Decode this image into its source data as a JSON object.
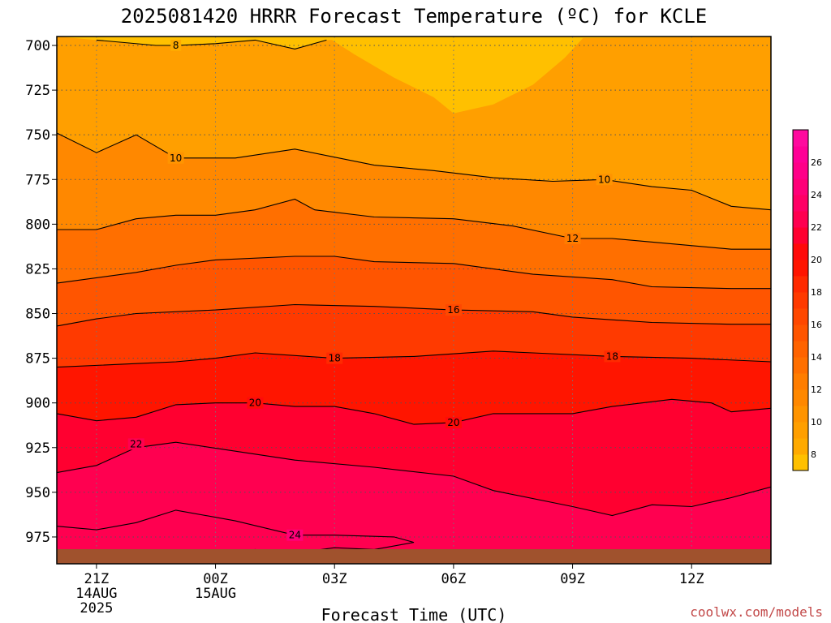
{
  "chart_data": {
    "type": "heatmap",
    "title": "2025081420 HRRR Forecast Temperature (ºC) for KCLE",
    "xlabel": "Forecast Time (UTC)",
    "ylabel": "",
    "credit": "coolwx.com/models",
    "y_axis": {
      "ticks": [
        700,
        725,
        750,
        775,
        800,
        825,
        850,
        875,
        900,
        925,
        950,
        975
      ],
      "range": [
        695,
        990
      ],
      "inverted": true
    },
    "x_axis": {
      "ticks": [
        {
          "hour": 21,
          "label": "21Z",
          "sub1": "14AUG",
          "sub2": "2025"
        },
        {
          "hour": 24,
          "label": "00Z",
          "sub1": "15AUG",
          "sub2": ""
        },
        {
          "hour": 27,
          "label": "03Z",
          "sub1": "",
          "sub2": ""
        },
        {
          "hour": 30,
          "label": "06Z",
          "sub1": "",
          "sub2": ""
        },
        {
          "hour": 33,
          "label": "09Z",
          "sub1": "",
          "sub2": ""
        },
        {
          "hour": 36,
          "label": "12Z",
          "sub1": "",
          "sub2": ""
        }
      ],
      "range": [
        20,
        38
      ]
    },
    "grid": true,
    "colorbar": {
      "placement": "right",
      "levels": [
        7,
        8,
        9,
        10,
        11,
        12,
        13,
        14,
        15,
        16,
        17,
        18,
        19,
        20,
        21,
        22,
        23,
        24,
        25,
        26,
        27,
        28
      ],
      "colors": [
        "#ffc000",
        "#ffaa00",
        "#ff9f00",
        "#ff9400",
        "#ff8800",
        "#ff7d00",
        "#ff6f00",
        "#ff6300",
        "#ff5500",
        "#ff4800",
        "#ff3a00",
        "#ff2a00",
        "#ff1500",
        "#ff0a0a",
        "#ff0030",
        "#ff0050",
        "#ff0065",
        "#ff0078",
        "#ff0088",
        "#ff0096",
        "#ff0a9e"
      ],
      "tick_labels": [
        8,
        10,
        12,
        14,
        16,
        18,
        20,
        22,
        24,
        26
      ]
    },
    "contours": [
      {
        "level": 8,
        "label_positions": [
          [
            23.0,
            700
          ]
        ],
        "points": [
          [
            21.0,
            697.0
          ],
          [
            22.5,
            700.0
          ],
          [
            23.0,
            700.0
          ],
          [
            24.0,
            699.0
          ],
          [
            25.0,
            697.0
          ],
          [
            26.0,
            702.0
          ],
          [
            26.8,
            697.0
          ]
        ]
      },
      {
        "level": 10,
        "label_positions": [
          [
            23.0,
            763
          ],
          [
            33.8,
            775
          ]
        ],
        "points": [
          [
            20.0,
            749.0
          ],
          [
            21.0,
            760.0
          ],
          [
            22.0,
            750.0
          ],
          [
            23.0,
            763.0
          ],
          [
            24.5,
            763.0
          ],
          [
            26.0,
            758.0
          ],
          [
            28.0,
            767.0
          ],
          [
            29.5,
            770.0
          ],
          [
            31.0,
            774.0
          ],
          [
            32.5,
            776.0
          ],
          [
            33.8,
            775.0
          ],
          [
            35.0,
            779.0
          ],
          [
            36.0,
            781.0
          ],
          [
            37.0,
            790.0
          ],
          [
            38.0,
            792.0
          ]
        ]
      },
      {
        "level": 12,
        "label_positions": [
          [
            33.0,
            808
          ]
        ],
        "points": [
          [
            20.0,
            803.0
          ],
          [
            21.0,
            803.0
          ],
          [
            22.0,
            797.0
          ],
          [
            23.0,
            795.0
          ],
          [
            24.0,
            795.0
          ],
          [
            25.0,
            792.0
          ],
          [
            26.0,
            786.0
          ],
          [
            26.5,
            792.0
          ],
          [
            28.0,
            796.0
          ],
          [
            30.0,
            797.0
          ],
          [
            31.5,
            801.0
          ],
          [
            33.0,
            808.0
          ],
          [
            34.0,
            808.0
          ],
          [
            35.5,
            811.0
          ],
          [
            37.0,
            814.0
          ],
          [
            38.0,
            814.0
          ]
        ]
      },
      {
        "level": 14,
        "label_positions": [],
        "points": [
          [
            20.0,
            833.0
          ],
          [
            22.0,
            827.0
          ],
          [
            23.0,
            823.0
          ],
          [
            24.0,
            820.0
          ],
          [
            26.0,
            818.0
          ],
          [
            27.0,
            818.0
          ],
          [
            28.0,
            821.0
          ],
          [
            30.0,
            822.0
          ],
          [
            32.0,
            828.0
          ],
          [
            34.0,
            831.0
          ],
          [
            35.0,
            835.0
          ],
          [
            37.0,
            836.0
          ],
          [
            38.0,
            836.0
          ]
        ]
      },
      {
        "level": 16,
        "label_positions": [
          [
            30.0,
            848
          ]
        ],
        "points": [
          [
            20.0,
            857.0
          ],
          [
            21.0,
            853.0
          ],
          [
            22.0,
            850.0
          ],
          [
            24.0,
            848.0
          ],
          [
            26.0,
            845.0
          ],
          [
            28.0,
            846.0
          ],
          [
            30.0,
            848.0
          ],
          [
            32.0,
            849.0
          ],
          [
            33.0,
            852.0
          ],
          [
            35.0,
            855.0
          ],
          [
            37.0,
            856.0
          ],
          [
            38.0,
            856.0
          ]
        ]
      },
      {
        "level": 18,
        "label_positions": [
          [
            27.0,
            875
          ],
          [
            34.0,
            874
          ]
        ],
        "points": [
          [
            20.0,
            880.0
          ],
          [
            22.0,
            878.0
          ],
          [
            23.0,
            877.0
          ],
          [
            24.0,
            875.0
          ],
          [
            25.0,
            872.0
          ],
          [
            27.0,
            875.0
          ],
          [
            29.0,
            874.0
          ],
          [
            31.0,
            871.0
          ],
          [
            32.0,
            872.0
          ],
          [
            34.0,
            874.0
          ],
          [
            36.0,
            875.0
          ],
          [
            38.0,
            877.0
          ]
        ]
      },
      {
        "level": 20,
        "label_positions": [
          [
            25.0,
            900
          ],
          [
            30.0,
            911
          ]
        ],
        "points": [
          [
            20.0,
            906.0
          ],
          [
            21.0,
            910.0
          ],
          [
            22.0,
            908.0
          ],
          [
            23.0,
            901.0
          ],
          [
            24.0,
            900.0
          ],
          [
            25.0,
            900.0
          ],
          [
            26.0,
            902.0
          ],
          [
            27.0,
            902.0
          ],
          [
            28.0,
            906.0
          ],
          [
            29.0,
            912.0
          ],
          [
            30.0,
            911.0
          ],
          [
            31.0,
            906.0
          ],
          [
            33.0,
            906.0
          ],
          [
            34.0,
            902.0
          ],
          [
            35.5,
            898.0
          ],
          [
            36.5,
            900.0
          ],
          [
            37.0,
            905.0
          ],
          [
            38.0,
            903.0
          ]
        ]
      },
      {
        "level": 22,
        "label_positions": [
          [
            22.0,
            923
          ]
        ],
        "points": [
          [
            20.0,
            939.0
          ],
          [
            21.0,
            935.0
          ],
          [
            22.0,
            925.0
          ],
          [
            23.0,
            922.0
          ],
          [
            24.5,
            927.0
          ],
          [
            26.0,
            932.0
          ],
          [
            28.0,
            936.0
          ],
          [
            30.0,
            941.0
          ],
          [
            31.0,
            949.0
          ],
          [
            33.0,
            958.0
          ],
          [
            34.0,
            963.0
          ],
          [
            35.0,
            957.0
          ],
          [
            36.0,
            958.0
          ],
          [
            37.0,
            953.0
          ],
          [
            38.0,
            947.0
          ]
        ]
      },
      {
        "level": 24,
        "label_positions": [
          [
            26.0,
            974
          ]
        ],
        "points": [
          [
            20.0,
            969.0
          ],
          [
            21.0,
            971.0
          ],
          [
            22.0,
            967.0
          ],
          [
            23.0,
            960.0
          ],
          [
            24.5,
            966.0
          ],
          [
            26.0,
            974.0
          ],
          [
            27.0,
            974.0
          ],
          [
            28.5,
            975.0
          ],
          [
            29.0,
            978.0
          ],
          [
            28.0,
            982.0
          ],
          [
            27.0,
            981.0
          ],
          [
            26.0,
            984.0
          ],
          [
            25.0,
            982.0
          ],
          [
            24.0,
            984.0
          ],
          [
            22.0,
            984.0
          ],
          [
            20.0,
            983.0
          ]
        ]
      },
      {
        "level": 22,
        "label_positions": [
          [
            30.0,
            985
          ]
        ],
        "points": [
          [
            28.0,
            987.0
          ],
          [
            30.0,
            985.0
          ],
          [
            31.0,
            988.0
          ]
        ]
      }
    ]
  }
}
